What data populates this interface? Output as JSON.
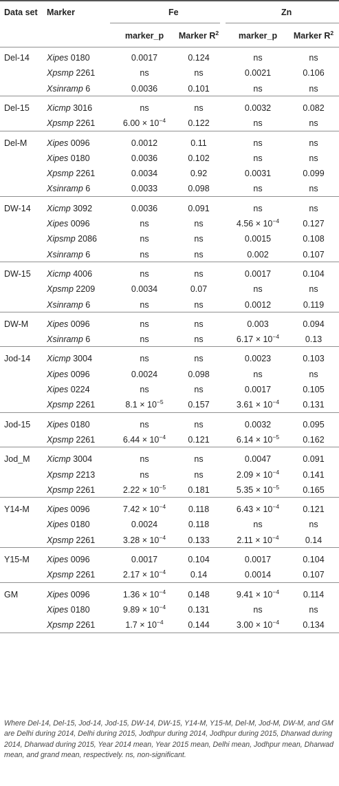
{
  "header": {
    "dataset": "Data set",
    "marker": "Marker",
    "fe": "Fe",
    "zn": "Zn",
    "marker_p": "marker_p",
    "marker_r2": "Marker R",
    "r2_sup": "2"
  },
  "groups": [
    {
      "dataset": "Del-14",
      "rows": [
        {
          "pre": "Xipes",
          "num": " 0180",
          "fe_p": "0.0017",
          "fe_r2": "0.124",
          "zn_p": "ns",
          "zn_r2": "ns"
        },
        {
          "pre": "Xpsmp",
          "num": " 2261",
          "fe_p": "ns",
          "fe_r2": "ns",
          "zn_p": "0.0021",
          "zn_r2": "0.106"
        },
        {
          "pre": "Xsinramp",
          "num": " 6",
          "fe_p": "0.0036",
          "fe_r2": "0.101",
          "zn_p": "ns",
          "zn_r2": "ns"
        }
      ]
    },
    {
      "dataset": "Del-15",
      "rows": [
        {
          "pre": "Xicmp",
          "num": " 3016",
          "fe_p": "ns",
          "fe_r2": "ns",
          "zn_p": "0.0032",
          "zn_r2": "0.082"
        },
        {
          "pre": "Xpsmp",
          "num": " 2261",
          "fe_p": "6.00 × 10",
          "fe_p_exp": "−4",
          "fe_r2": "0.122",
          "zn_p": "ns",
          "zn_r2": "ns"
        }
      ]
    },
    {
      "dataset": "Del-M",
      "rows": [
        {
          "pre": "Xipes",
          "num": " 0096",
          "fe_p": "0.0012",
          "fe_r2": "0.11",
          "zn_p": "ns",
          "zn_r2": "ns"
        },
        {
          "pre": "Xipes",
          "num": " 0180",
          "fe_p": "0.0036",
          "fe_r2": "0.102",
          "zn_p": "ns",
          "zn_r2": "ns"
        },
        {
          "pre": "Xpsmp",
          "num": " 2261",
          "fe_p": "0.0034",
          "fe_r2": "0.92",
          "zn_p": "0.0031",
          "zn_r2": "0.099"
        },
        {
          "pre": "Xsinramp",
          "num": " 6",
          "fe_p": "0.0033",
          "fe_r2": "0.098",
          "zn_p": "ns",
          "zn_r2": "ns"
        }
      ]
    },
    {
      "dataset": "DW-14",
      "rows": [
        {
          "pre": "Xicmp",
          "num": " 3092",
          "fe_p": "0.0036",
          "fe_r2": "0.091",
          "zn_p": "ns",
          "zn_r2": "ns"
        },
        {
          "pre": "Xipes",
          "num": " 0096",
          "fe_p": "ns",
          "fe_r2": "ns",
          "zn_p": "4.56 × 10",
          "zn_p_exp": "−4",
          "zn_r2": "0.127"
        },
        {
          "pre": "Xipsmp",
          "num": " 2086",
          "fe_p": "ns",
          "fe_r2": "ns",
          "zn_p": "0.0015",
          "zn_r2": "0.108"
        },
        {
          "pre": "Xsinramp",
          "num": " 6",
          "fe_p": "ns",
          "fe_r2": "ns",
          "zn_p": "0.002",
          "zn_r2": "0.107"
        }
      ]
    },
    {
      "dataset": "DW-15",
      "rows": [
        {
          "pre": "Xicmp",
          "num": " 4006",
          "fe_p": "ns",
          "fe_r2": "ns",
          "zn_p": "0.0017",
          "zn_r2": "0.104"
        },
        {
          "pre": "Xpsmp",
          "num": " 2209",
          "fe_p": "0.0034",
          "fe_r2": "0.07",
          "zn_p": "ns",
          "zn_r2": "ns"
        },
        {
          "pre": "Xsinramp",
          "num": " 6",
          "fe_p": "ns",
          "fe_r2": "ns",
          "zn_p": "0.0012",
          "zn_r2": "0.119"
        }
      ]
    },
    {
      "dataset": "DW-M",
      "rows": [
        {
          "pre": "Xipes",
          "num": " 0096",
          "fe_p": "ns",
          "fe_r2": "ns",
          "zn_p": "0.003",
          "zn_r2": "0.094"
        },
        {
          "pre": "Xsinramp",
          "num": " 6",
          "fe_p": "ns",
          "fe_r2": "ns",
          "zn_p": "6.17 × 10",
          "zn_p_exp": "−4",
          "zn_r2": "0.13"
        }
      ]
    },
    {
      "dataset": "Jod-14",
      "rows": [
        {
          "pre": "Xicmp",
          "num": " 3004",
          "fe_p": "ns",
          "fe_r2": "ns",
          "zn_p": "0.0023",
          "zn_r2": "0.103"
        },
        {
          "pre": "Xipes",
          "num": " 0096",
          "fe_p": "0.0024",
          "fe_r2": "0.098",
          "zn_p": "ns",
          "zn_r2": "ns"
        },
        {
          "pre": "Xipes",
          "num": " 0224",
          "fe_p": "ns",
          "fe_r2": "ns",
          "zn_p": "0.0017",
          "zn_r2": "0.105"
        },
        {
          "pre": "Xpsmp",
          "num": " 2261",
          "fe_p": "8.1 × 10",
          "fe_p_exp": "−5",
          "fe_r2": "0.157",
          "zn_p": "3.61 × 10",
          "zn_p_exp": "−4",
          "zn_r2": "0.131"
        }
      ]
    },
    {
      "dataset": "Jod-15",
      "rows": [
        {
          "pre": "Xipes",
          "num": " 0180",
          "fe_p": "ns",
          "fe_r2": "ns",
          "zn_p": "0.0032",
          "zn_r2": "0.095"
        },
        {
          "pre": "Xpsmp",
          "num": " 2261",
          "fe_p": "6.44 × 10",
          "fe_p_exp": "−4",
          "fe_r2": "0.121",
          "zn_p": "6.14 × 10",
          "zn_p_exp": "−5",
          "zn_r2": "0.162"
        }
      ]
    },
    {
      "dataset": "Jod_M",
      "rows": [
        {
          "pre": "Xicmp",
          "num": " 3004",
          "fe_p": "ns",
          "fe_r2": "ns",
          "zn_p": "0.0047",
          "zn_r2": "0.091"
        },
        {
          "pre": "Xpsmp",
          "num": " 2213",
          "fe_p": "ns",
          "fe_r2": "ns",
          "zn_p": "2.09 × 10",
          "zn_p_exp": "−4",
          "zn_r2": "0.141"
        },
        {
          "pre": "Xpsmp",
          "num": " 2261",
          "fe_p": "2.22 × 10",
          "fe_p_exp": "−5",
          "fe_r2": "0.181",
          "zn_p": "5.35 × 10",
          "zn_p_exp": "−5",
          "zn_r2": "0.165"
        }
      ]
    },
    {
      "dataset": "Y14-M",
      "rows": [
        {
          "pre": "Xipes",
          "num": " 0096",
          "fe_p": "7.42 × 10",
          "fe_p_exp": "−4",
          "fe_r2": "0.118",
          "zn_p": "6.43 × 10",
          "zn_p_exp": "−4",
          "zn_r2": "0.121"
        },
        {
          "pre": "Xipes",
          "num": " 0180",
          "fe_p": "0.0024",
          "fe_r2": "0.118",
          "zn_p": "ns",
          "zn_r2": "ns"
        },
        {
          "pre": "Xpsmp",
          "num": " 2261",
          "fe_p": "3.28 × 10",
          "fe_p_exp": "−4",
          "fe_r2": "0.133",
          "zn_p": "2.11 × 10",
          "zn_p_exp": "−4",
          "zn_r2": "0.14"
        }
      ]
    },
    {
      "dataset": "Y15-M",
      "rows": [
        {
          "pre": "Xipes",
          "num": " 0096",
          "fe_p": "0.0017",
          "fe_r2": "0.104",
          "zn_p": "0.0017",
          "zn_r2": "0.104"
        },
        {
          "pre": "Xpsmp",
          "num": " 2261",
          "fe_p": "2.17 × 10",
          "fe_p_exp": "−4",
          "fe_r2": "0.14",
          "zn_p": "0.0014",
          "zn_r2": "0.107"
        }
      ]
    },
    {
      "dataset": "GM",
      "rows": [
        {
          "pre": "Xipes",
          "num": " 0096",
          "fe_p": "1.36 × 10",
          "fe_p_exp": "−4",
          "fe_r2": "0.148",
          "zn_p": "9.41 × 10",
          "zn_p_exp": "−4",
          "zn_r2": "0.114"
        },
        {
          "pre": "Xipes",
          "num": " 0180",
          "fe_p": "9.89 × 10",
          "fe_p_exp": "−4",
          "fe_r2": "0.131",
          "zn_p": "ns",
          "zn_r2": "ns"
        },
        {
          "pre": "Xpsmp",
          "num": " 2261",
          "fe_p": "1.7 × 10",
          "fe_p_exp": "−4",
          "fe_r2": "0.144",
          "zn_p": "3.00 × 10",
          "zn_p_exp": "−4",
          "zn_r2": "0.134"
        }
      ]
    }
  ],
  "footnote": "Where Del-14, Del-15, Jod-14, Jod-15, DW-14, DW-15, Y14-M, Y15-M, Del-M, Jod-M, DW-M, and GM are Delhi during 2014, Delhi during 2015, Jodhpur during 2014, Jodhpur during 2015, Dharwad during 2014, Dharwad during 2015, Year 2014 mean, Year 2015 mean, Delhi mean, Jodhpur mean, Dharwad mean, and grand mean, respectively. ns, non-significant."
}
